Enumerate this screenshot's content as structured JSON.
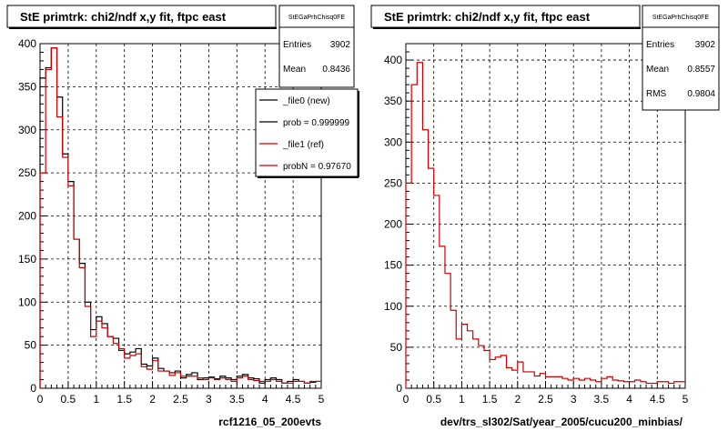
{
  "chart_data": [
    {
      "type": "histogram",
      "title": "StE primtrk: chi2/ndf x,y fit, ftpc east",
      "xlabel": "rcf1216_05_200evts",
      "xlim": [
        0,
        5
      ],
      "ylim": [
        0,
        400
      ],
      "xticks": [
        "0",
        "0.5",
        "1",
        "1.5",
        "2",
        "2.5",
        "3",
        "3.5",
        "4",
        "4.5",
        "5"
      ],
      "yticks": [
        "0",
        "50",
        "100",
        "150",
        "200",
        "250",
        "300",
        "350",
        "400"
      ],
      "grid": true,
      "bin_width": 0.1,
      "stats": {
        "name": "StEGaPrhChisq0FE",
        "rows": [
          {
            "label": "Entries",
            "value": "3902"
          },
          {
            "label": "Mean",
            "value": "0.8436"
          }
        ]
      },
      "legend": {
        "position": "top-right",
        "entries": [
          {
            "label": "_file0 (new)",
            "color": "#000000"
          },
          {
            "label": "prob = 0.999999",
            "color": "#000000"
          },
          {
            "label": "_file1 (ref)",
            "color": "#cc0000"
          },
          {
            "label": "probN = 0.97670",
            "color": "#cc0000"
          }
        ]
      },
      "series": [
        {
          "color": "#000000",
          "values": [
            360,
            372,
            395,
            338,
            272,
            240,
            173,
            145,
            100,
            68,
            83,
            75,
            60,
            58,
            44,
            40,
            42,
            46,
            28,
            26,
            35,
            23,
            20,
            18,
            20,
            12,
            16,
            18,
            10,
            12,
            13,
            11,
            14,
            12,
            10,
            14,
            16,
            12,
            11,
            6,
            10,
            12,
            10,
            6,
            8,
            10,
            8,
            6,
            7,
            8
          ]
        },
        {
          "color": "#cc0000",
          "values": [
            250,
            370,
            395,
            315,
            268,
            235,
            173,
            140,
            95,
            60,
            78,
            70,
            60,
            52,
            46,
            35,
            38,
            40,
            25,
            22,
            32,
            20,
            20,
            15,
            18,
            14,
            14,
            14,
            12,
            10,
            12,
            10,
            12,
            10,
            8,
            12,
            14,
            10,
            9,
            8,
            8,
            10,
            8,
            6,
            6,
            8,
            8,
            6,
            8,
            8
          ]
        }
      ]
    },
    {
      "type": "histogram",
      "title": "StE primtrk: chi2/ndf x,y fit, ftpc east",
      "xlabel": "dev/trs_sl302/Sat/year_2005/cucu200_minbias/",
      "xlim": [
        0,
        5
      ],
      "ylim": [
        0,
        420
      ],
      "xticks": [
        "0",
        "0.5",
        "1",
        "1.5",
        "2",
        "2.5",
        "3",
        "3.5",
        "4",
        "4.5",
        "5"
      ],
      "yticks": [
        "0",
        "50",
        "100",
        "150",
        "200",
        "250",
        "300",
        "350",
        "400"
      ],
      "grid": true,
      "bin_width": 0.1,
      "stats": {
        "name": "StEGaPrhChisq0FE",
        "rows": [
          {
            "label": "Entries",
            "value": "3902"
          },
          {
            "label": "Mean",
            "value": "0.8557"
          },
          {
            "label": "RMS",
            "value": "0.9804"
          }
        ]
      },
      "series": [
        {
          "color": "#cc0000",
          "values": [
            250,
            370,
            397,
            315,
            268,
            235,
            173,
            140,
            95,
            60,
            78,
            70,
            60,
            52,
            46,
            35,
            38,
            40,
            25,
            22,
            32,
            20,
            20,
            15,
            18,
            14,
            14,
            14,
            12,
            10,
            12,
            10,
            12,
            10,
            8,
            12,
            14,
            10,
            9,
            8,
            8,
            10,
            8,
            6,
            6,
            8,
            8,
            6,
            8,
            8
          ]
        }
      ]
    }
  ]
}
